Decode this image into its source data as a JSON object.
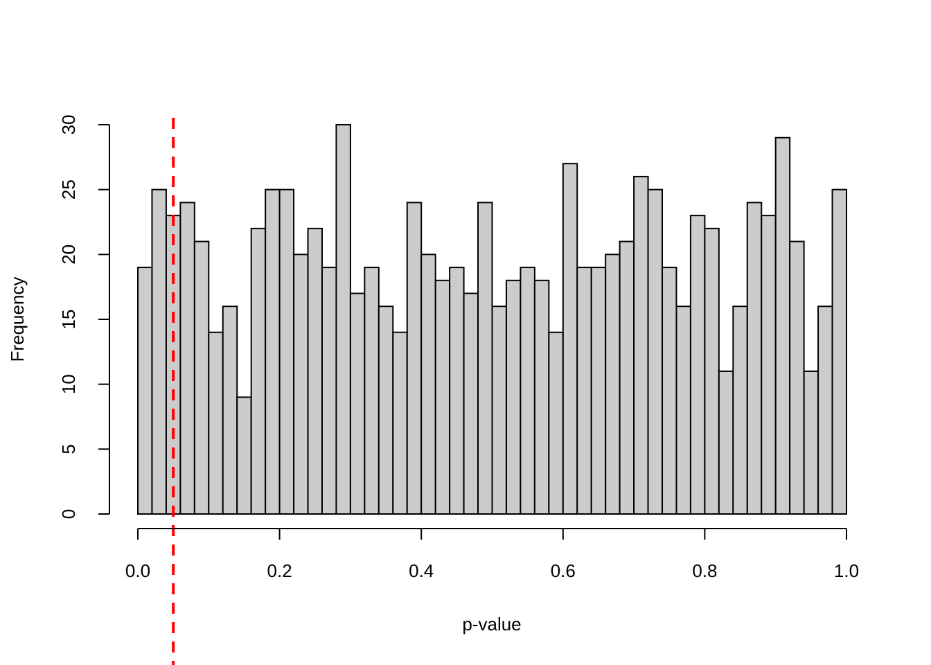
{
  "chart_data": {
    "type": "bar",
    "subtype": "histogram",
    "bin_edges_range": [
      0,
      1
    ],
    "bin_width": 0.02,
    "values": [
      19,
      25,
      23,
      24,
      21,
      14,
      16,
      9,
      22,
      25,
      25,
      20,
      22,
      19,
      30,
      17,
      19,
      16,
      14,
      24,
      20,
      18,
      19,
      17,
      24,
      16,
      18,
      19,
      18,
      14,
      27,
      19,
      19,
      20,
      21,
      26,
      25,
      19,
      16,
      23,
      22,
      11,
      16,
      24,
      23,
      29,
      21,
      11,
      16,
      25
    ],
    "xlabel": "p-value",
    "ylabel": "Frequency",
    "xticks": [
      "0.0",
      "0.2",
      "0.4",
      "0.6",
      "0.8",
      "1.0"
    ],
    "xtick_values": [
      0,
      0.2,
      0.4,
      0.6,
      0.8,
      1.0
    ],
    "yticks": [
      "0",
      "5",
      "10",
      "15",
      "20",
      "25",
      "30"
    ],
    "ytick_values": [
      0,
      5,
      10,
      15,
      20,
      25,
      30
    ],
    "xlim": [
      0,
      1
    ],
    "ylim": [
      0,
      30
    ],
    "grid": false,
    "bar_color": "#cccccc",
    "bar_edge_color": "#000000",
    "reference_line": {
      "x": 0.05,
      "style": "dashed",
      "color": "#ff0000"
    }
  }
}
